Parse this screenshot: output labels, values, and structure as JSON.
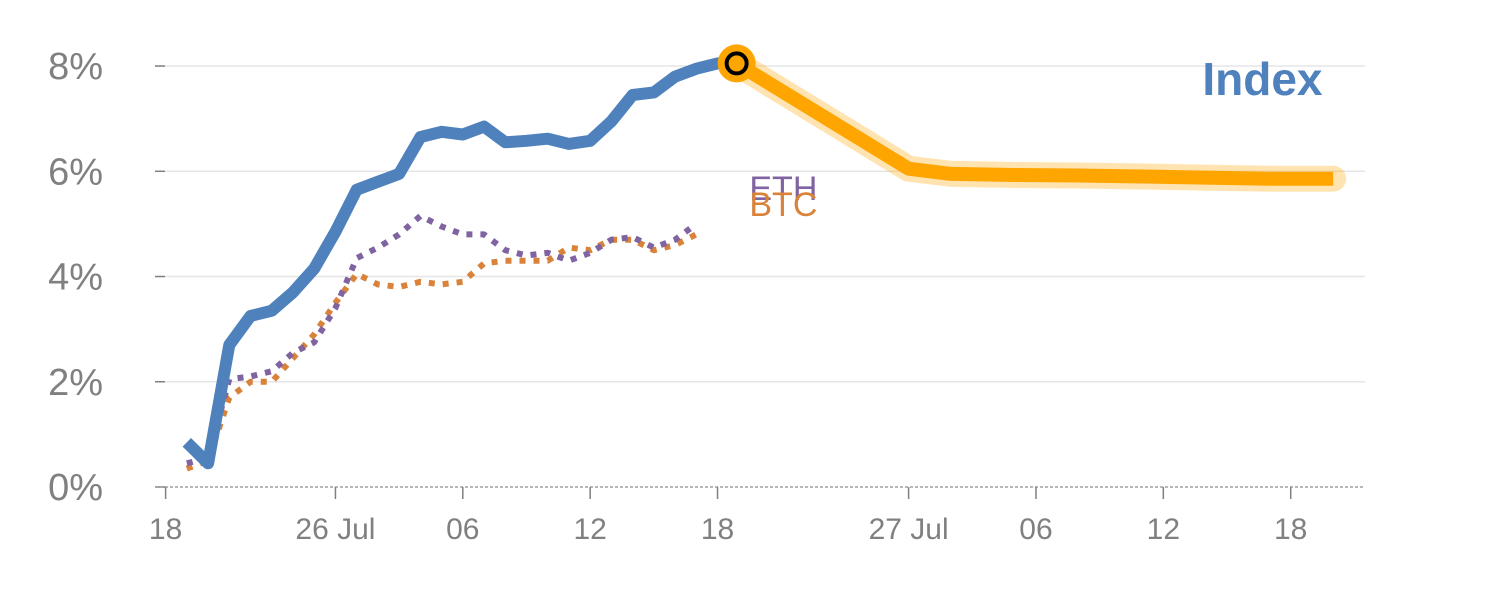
{
  "chart_data": {
    "type": "line",
    "y_ticks": [
      {
        "value": 0,
        "label": "0%"
      },
      {
        "value": 2,
        "label": "2%"
      },
      {
        "value": 4,
        "label": "4%"
      },
      {
        "value": 6,
        "label": "6%"
      },
      {
        "value": 8,
        "label": "8%"
      }
    ],
    "ylim": [
      0,
      8.4
    ],
    "grid": true,
    "x_ticks": [
      {
        "x": 0,
        "label": "18"
      },
      {
        "x": 8,
        "label": "26 Jul"
      },
      {
        "x": 14,
        "label": "06"
      },
      {
        "x": 20,
        "label": "12"
      },
      {
        "x": 26,
        "label": "18"
      },
      {
        "x": 35,
        "label": "27 Jul"
      },
      {
        "x": 41,
        "label": "06"
      },
      {
        "x": 47,
        "label": "12"
      },
      {
        "x": 53,
        "label": "18"
      }
    ],
    "xlim": [
      -0.5,
      56.5
    ],
    "series": [
      {
        "name": "Index",
        "color": "#4f81bd",
        "style": "solid",
        "x": [
          1,
          2,
          3,
          4,
          5,
          6,
          7,
          8,
          9,
          10,
          11,
          12,
          13,
          14,
          15,
          16,
          17,
          18,
          19,
          20,
          21,
          22,
          23,
          24,
          25,
          26,
          26.9
        ],
        "values": [
          0.85,
          0.45,
          2.7,
          3.25,
          3.35,
          3.7,
          4.15,
          4.85,
          5.65,
          5.8,
          5.95,
          6.65,
          6.75,
          6.7,
          6.85,
          6.55,
          6.58,
          6.62,
          6.52,
          6.58,
          6.95,
          7.45,
          7.5,
          7.8,
          7.95,
          8.05,
          8.05
        ]
      },
      {
        "name": "ETH",
        "color": "#8064a2",
        "style": "dotted",
        "x": [
          1,
          2,
          3,
          4,
          5,
          6,
          7,
          8,
          9,
          10,
          11,
          12,
          13,
          14,
          15,
          16,
          17,
          18,
          19,
          20,
          21,
          22,
          23,
          24,
          25,
          26
        ],
        "values": [
          0.45,
          0.55,
          2.05,
          2.1,
          2.2,
          2.55,
          2.75,
          3.4,
          4.35,
          4.55,
          4.8,
          5.15,
          4.95,
          4.8,
          4.8,
          4.5,
          4.4,
          4.45,
          4.3,
          4.45,
          4.7,
          4.75,
          4.55,
          4.7,
          5.0,
          null
        ]
      },
      {
        "name": "BTC",
        "color": "#d9823a",
        "style": "dotted",
        "x": [
          1,
          2,
          3,
          4,
          5,
          6,
          7,
          8,
          9,
          10,
          11,
          12,
          13,
          14,
          15,
          16,
          17,
          18,
          19,
          20,
          21,
          22,
          23,
          24,
          25,
          26
        ],
        "values": [
          0.35,
          0.5,
          1.7,
          2.0,
          2.0,
          2.45,
          2.9,
          3.5,
          4.05,
          3.85,
          3.8,
          3.9,
          3.85,
          3.9,
          4.25,
          4.3,
          4.3,
          4.3,
          4.55,
          4.5,
          4.7,
          4.7,
          4.5,
          4.6,
          4.8,
          null
        ]
      },
      {
        "name": "Index",
        "color": "#ffa500",
        "style": "forecast",
        "x": [
          26.9,
          35,
          37,
          40,
          43,
          46,
          49,
          52,
          55
        ],
        "values": [
          8.05,
          6.05,
          5.95,
          5.93,
          5.92,
          5.9,
          5.88,
          5.86,
          5.86
        ]
      }
    ],
    "highlight_point": {
      "x": 26.9,
      "value": 8.05
    },
    "labels": [
      {
        "text": "ETH",
        "color": "#8064a2",
        "x": 27.5,
        "value": 5.45
      },
      {
        "text": "BTC",
        "color": "#d9823a",
        "x": 27.5,
        "value": 5.15
      },
      {
        "text": "Index",
        "color": "#4f81bd",
        "x": 54.5,
        "value": 7.45
      }
    ]
  }
}
